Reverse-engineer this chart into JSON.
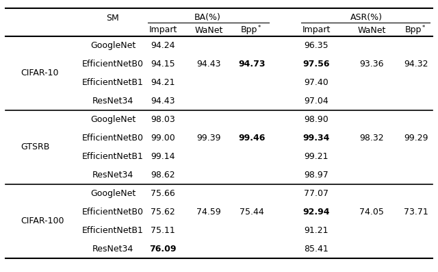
{
  "groups": [
    {
      "dataset": "CIFAR-10",
      "rows": [
        {
          "sm": "GoogleNet",
          "ba_impart": "94.24",
          "asr_impart": "96.35"
        },
        {
          "sm": "EfficientNetB0",
          "ba_impart": "94.15",
          "asr_impart": "97.56",
          "bold_asr": true
        },
        {
          "sm": "EfficientNetB1",
          "ba_impart": "94.21",
          "asr_impart": "97.40"
        },
        {
          "sm": "ResNet34",
          "ba_impart": "94.43",
          "asr_impart": "97.04"
        }
      ],
      "ba_wanet": "94.43",
      "ba_bpp": "94.73",
      "bold_ba_bpp": true,
      "asr_wanet": "93.36",
      "asr_bpp": "94.32",
      "merged_row": 1
    },
    {
      "dataset": "GTSRB",
      "rows": [
        {
          "sm": "GoogleNet",
          "ba_impart": "98.03",
          "asr_impart": "98.90"
        },
        {
          "sm": "EfficientNetB0",
          "ba_impart": "99.00",
          "asr_impart": "99.34",
          "bold_asr": true
        },
        {
          "sm": "EfficientNetB1",
          "ba_impart": "99.14",
          "asr_impart": "99.21"
        },
        {
          "sm": "ResNet34",
          "ba_impart": "98.62",
          "asr_impart": "98.97"
        }
      ],
      "ba_wanet": "99.39",
      "ba_bpp": "99.46",
      "bold_ba_bpp": true,
      "asr_wanet": "98.32",
      "asr_bpp": "99.29",
      "merged_row": 1
    },
    {
      "dataset": "CIFAR-100",
      "rows": [
        {
          "sm": "GoogleNet",
          "ba_impart": "75.66",
          "asr_impart": "77.07"
        },
        {
          "sm": "EfficientNetB0",
          "ba_impart": "75.62",
          "asr_impart": "92.94",
          "bold_asr": true
        },
        {
          "sm": "EfficientNetB1",
          "ba_impart": "75.11",
          "asr_impart": "91.21"
        },
        {
          "sm": "ResNet34",
          "ba_impart": "76.09",
          "bold_ba": true,
          "asr_impart": "85.41"
        }
      ],
      "ba_wanet": "74.59",
      "ba_bpp": "75.44",
      "bold_ba_bpp": false,
      "asr_wanet": "74.05",
      "asr_bpp": "73.71",
      "merged_row": 1
    }
  ],
  "font_size": 9.0,
  "font_family": "DejaVu Sans"
}
